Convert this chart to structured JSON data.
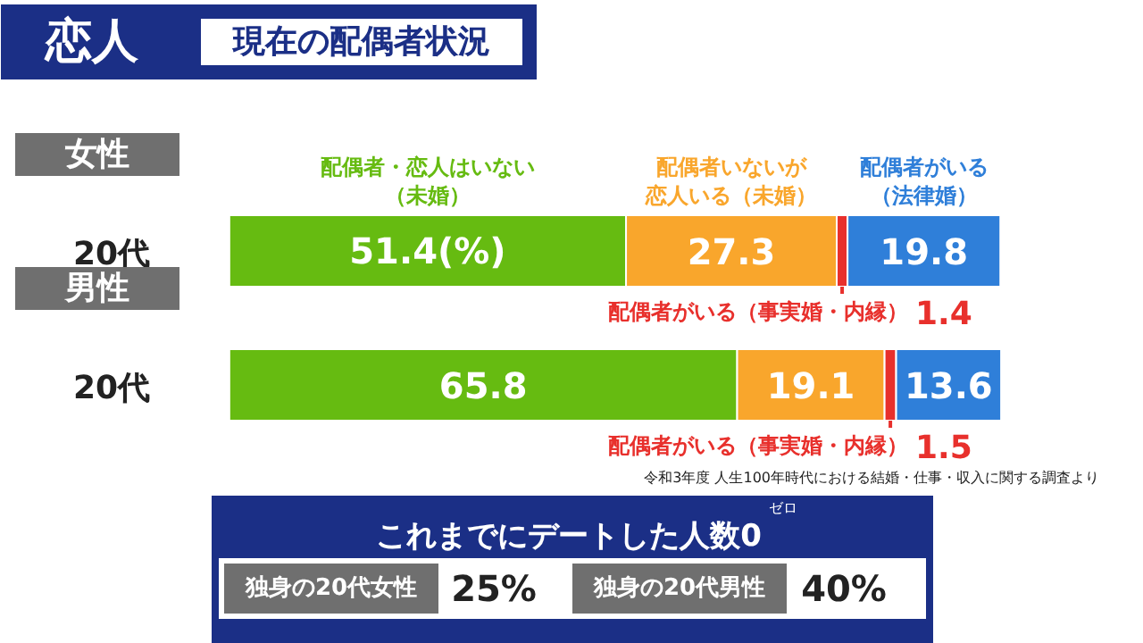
{
  "chart_data": {
    "type": "bar",
    "orientation": "horizontal",
    "stacked": true,
    "data_labels": true,
    "legend": "top",
    "title": "恋人",
    "subtitle": "現在の配偶者状況",
    "categories": [
      "20代",
      "20代"
    ],
    "series": [
      {
        "name": "配偶者・恋人はいない（未婚）",
        "color": "#66bb11",
        "values": [
          51.4,
          65.8
        ],
        "value_labels": [
          "51.4(%)",
          "65.8"
        ]
      },
      {
        "name": "配偶者いないが恋人いる（未婚）",
        "color": "#f9a62c",
        "values": [
          27.3,
          19.1
        ]
      },
      {
        "name": "配偶者がいる（事実婚・内縁）",
        "color": "#e8302c",
        "values": [
          1.4,
          1.5
        ]
      },
      {
        "name": "配偶者がいる（法律婚）",
        "color": "#2f7fd9",
        "values": [
          19.8,
          13.6
        ]
      }
    ],
    "annotations": [
      "女性",
      "男性",
      "令和3年度 人生100年時代における結婚・仕事・収入に関する調査より",
      "これまでにデートした人数0",
      "ゼロ",
      "独身の20代女性",
      "25%",
      "独身の20代男性",
      "40%"
    ]
  }
}
